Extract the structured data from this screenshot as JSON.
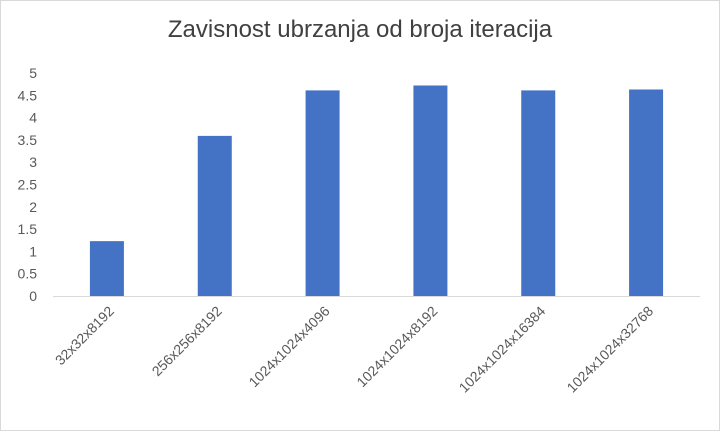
{
  "chart_data": {
    "type": "bar",
    "title": "Zavisnost ubrzanja od broja iteracija",
    "xlabel": "",
    "ylabel": "",
    "categories": [
      "32x32x8192",
      "256x256x8192",
      "1024x1024x4096",
      "1024x1024x8192",
      "1024x1024x16384",
      "1024x1024x32768"
    ],
    "values": [
      1.23,
      3.59,
      4.61,
      4.72,
      4.61,
      4.63
    ],
    "ylim": [
      0,
      5
    ],
    "yticks": [
      "0",
      "0.5",
      "1",
      "1.5",
      "2",
      "2.5",
      "3",
      "3.5",
      "4",
      "4.5",
      "5"
    ],
    "grid": false,
    "legend": "none",
    "bar_color": "#4472c4",
    "axis_color": "#d9d9d9"
  }
}
